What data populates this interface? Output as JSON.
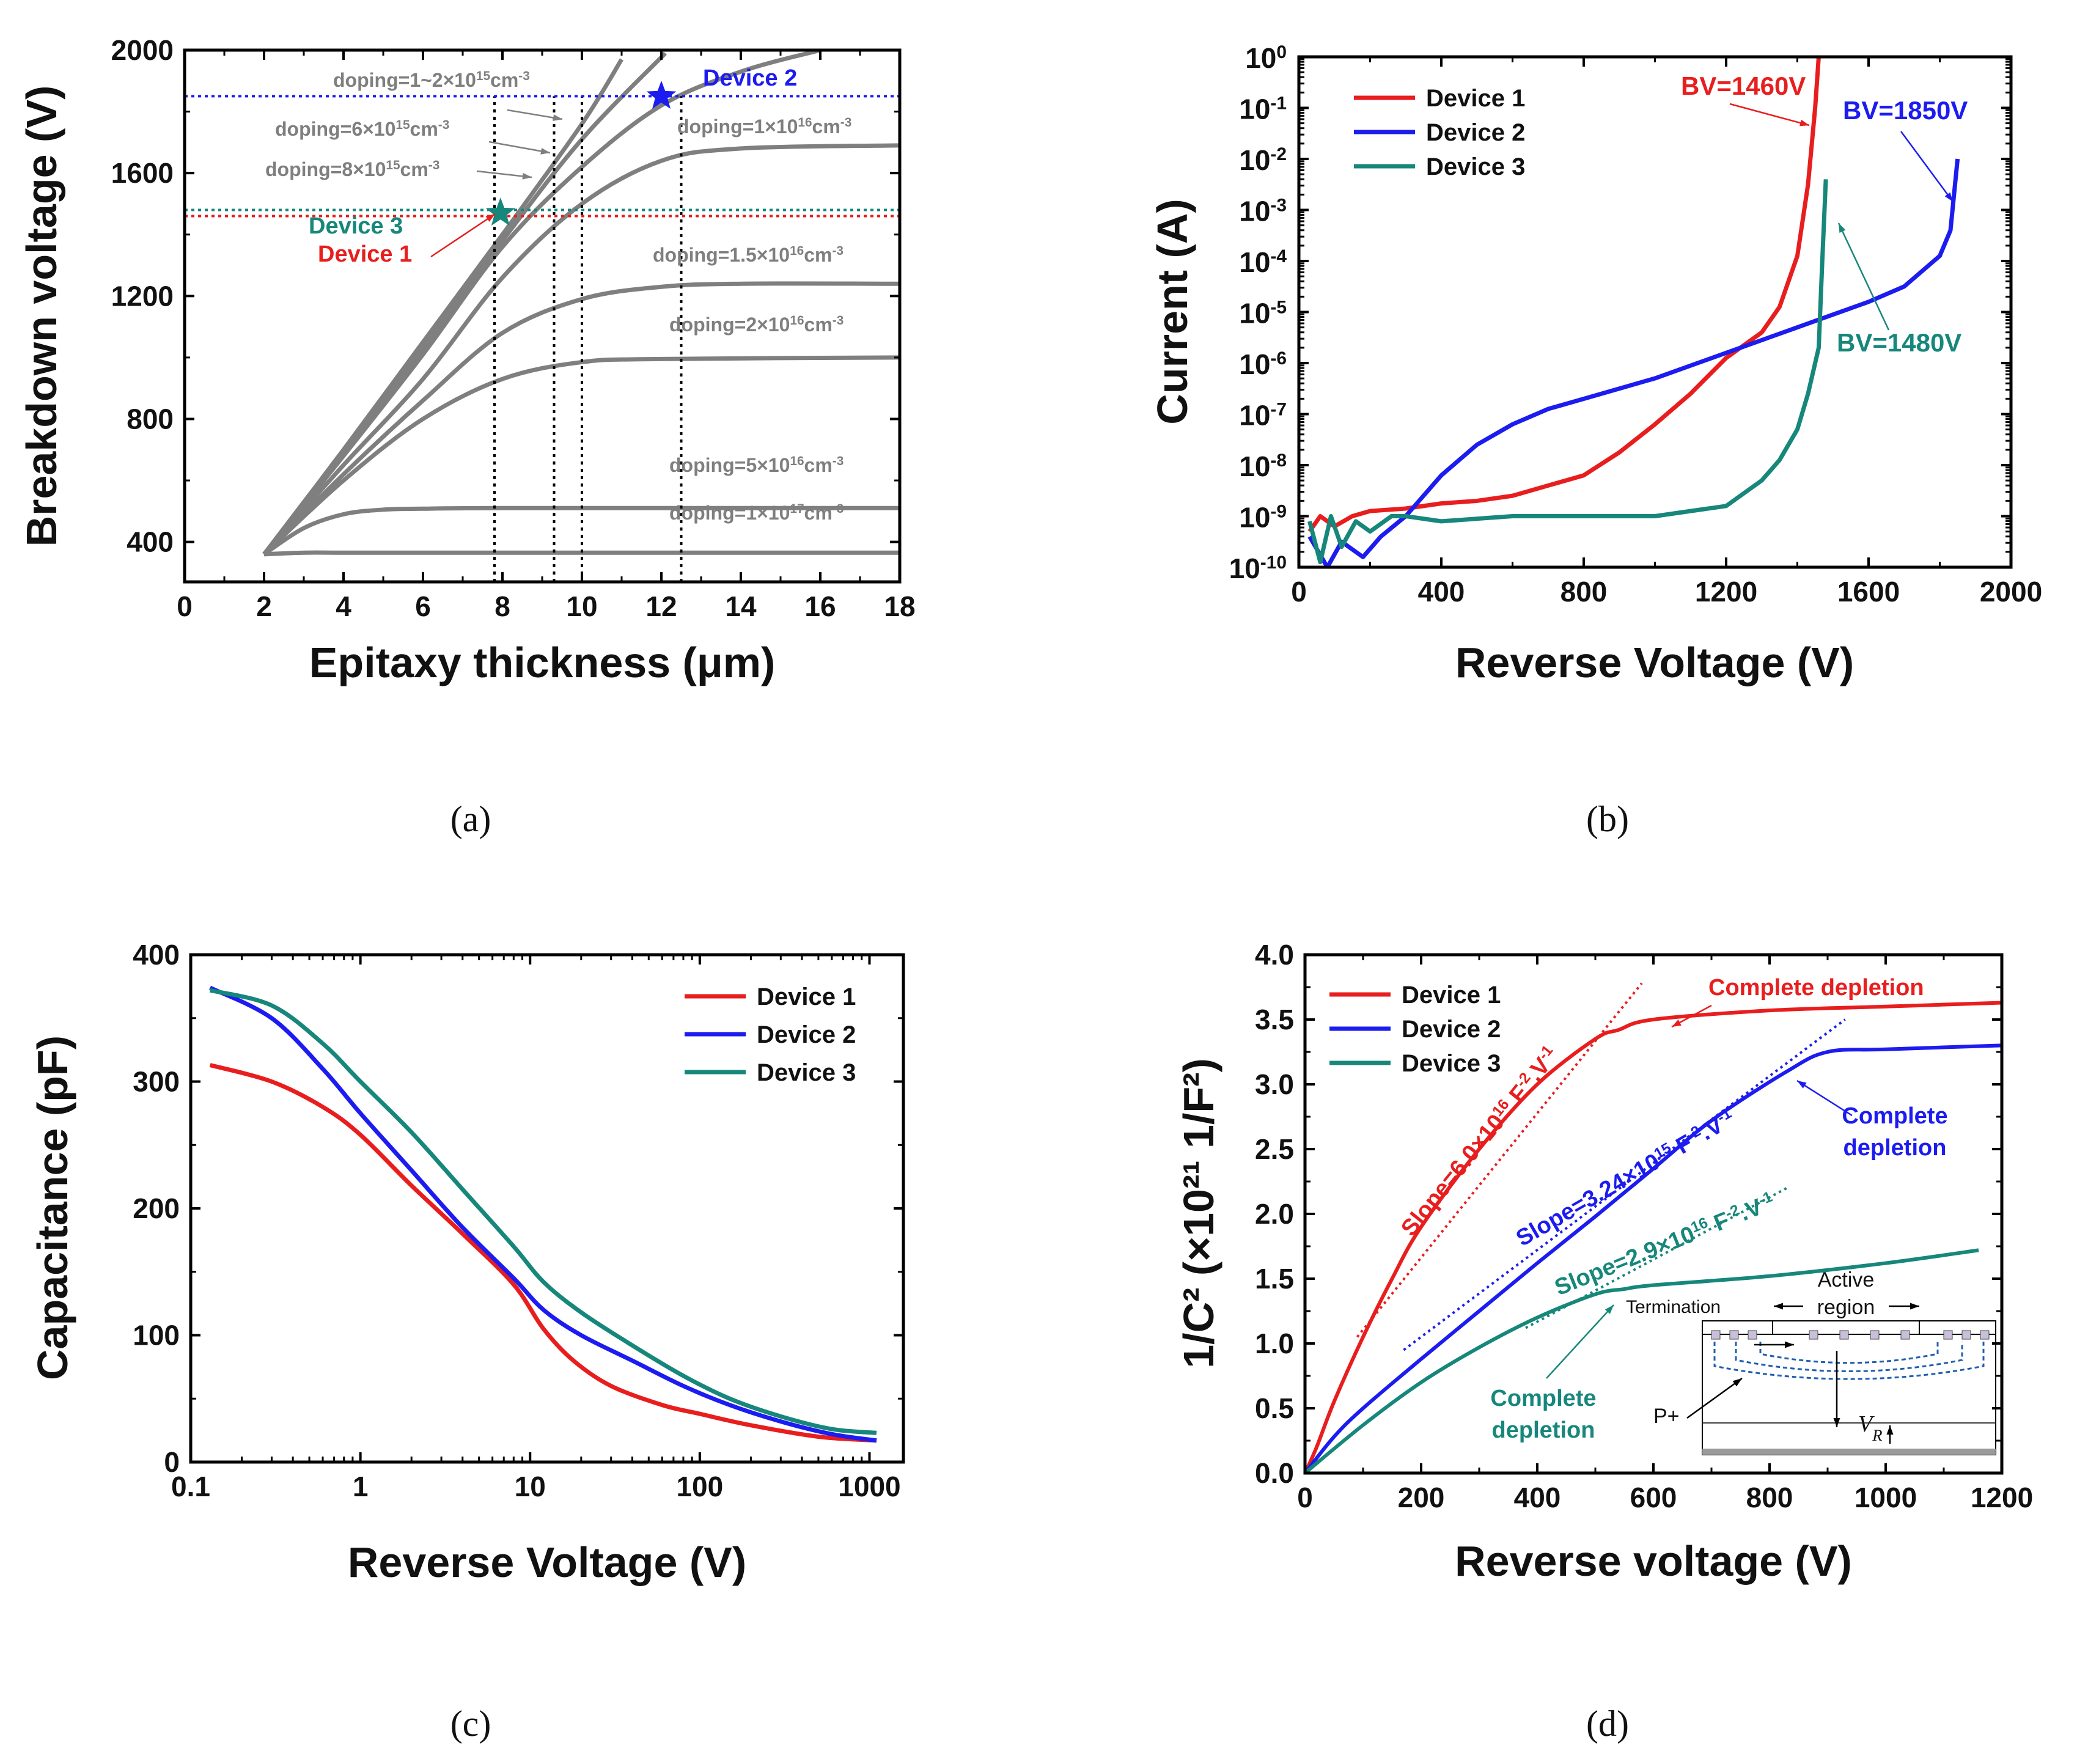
{
  "colors": {
    "dev1": "#e81e1e",
    "dev2": "#1c1cf0",
    "dev3": "#16877a",
    "gray": "#7f7f7f"
  },
  "chart_data": [
    {
      "id": "a",
      "caption": "(a)",
      "type": "line",
      "xlabel": "Epitaxy thickness (μm)",
      "ylabel": "Breakdown voltage (V)",
      "xlim": [
        0,
        18
      ],
      "ylim": [
        270,
        2000
      ],
      "xticks": [
        0,
        2,
        4,
        6,
        8,
        10,
        12,
        14,
        16,
        18
      ],
      "yticks": [
        400,
        800,
        1200,
        1600,
        2000
      ],
      "series": [
        {
          "name": "doping=1~2×10^15cm^-3 (a)",
          "x": [
            2,
            4,
            6,
            8,
            10,
            11
          ],
          "y": [
            360,
            700,
            1050,
            1400,
            1760,
            1970
          ]
        },
        {
          "name": "doping=1~2×10^15cm^-3 (b)",
          "x": [
            2,
            4,
            6,
            8,
            10,
            12.1
          ],
          "y": [
            360,
            690,
            1030,
            1380,
            1710,
            1990
          ]
        },
        {
          "name": "doping=6×10^15cm^-3",
          "x": [
            2,
            4,
            6,
            8,
            10,
            12,
            14,
            16
          ],
          "y": [
            360,
            680,
            1010,
            1360,
            1620,
            1820,
            1930,
            2000
          ]
        },
        {
          "name": "doping=1×10^16cm^-3",
          "x": [
            2,
            4,
            6,
            8,
            10,
            12,
            14,
            18
          ],
          "y": [
            360,
            650,
            930,
            1260,
            1500,
            1640,
            1680,
            1690
          ]
        },
        {
          "name": "doping=1.5×10^16cm^-3",
          "x": [
            2,
            4,
            6,
            8,
            10,
            12,
            14,
            18
          ],
          "y": [
            360,
            620,
            860,
            1080,
            1190,
            1230,
            1240,
            1240
          ]
        },
        {
          "name": "doping=2×10^16cm^-3",
          "x": [
            2,
            4,
            6,
            8,
            10,
            12,
            18
          ],
          "y": [
            360,
            600,
            800,
            930,
            985,
            995,
            1000
          ]
        },
        {
          "name": "doping=5×10^16cm^-3",
          "x": [
            2,
            3,
            4,
            5,
            6,
            8,
            18
          ],
          "y": [
            360,
            445,
            490,
            505,
            508,
            510,
            510
          ]
        },
        {
          "name": "doping=1×10^17cm^-3",
          "x": [
            2,
            3,
            4,
            6,
            18
          ],
          "y": [
            360,
            365,
            365,
            365,
            365
          ]
        }
      ],
      "curve_labels": [
        {
          "text": "doping=1~2×10",
          "sup": "15",
          "tail": "cm",
          "sup2": "-3"
        },
        {
          "text": "doping=6×10",
          "sup": "15",
          "tail": "cm",
          "sup2": "-3"
        },
        {
          "text": "doping=8×10",
          "sup": "15",
          "tail": "cm",
          "sup2": "-3"
        },
        {
          "text": "doping=1×10",
          "sup": "16",
          "tail": "cm",
          "sup2": "-3"
        },
        {
          "text": "doping=1.5×10",
          "sup": "16",
          "tail": "cm",
          "sup2": "-3"
        },
        {
          "text": "doping=2×10",
          "sup": "16",
          "tail": "cm",
          "sup2": "-3"
        },
        {
          "text": "doping=5×10",
          "sup": "16",
          "tail": "cm",
          "sup2": "-3"
        },
        {
          "text": "doping=1×10",
          "sup": "17",
          "tail": "cm",
          "sup2": "-3"
        }
      ],
      "hlines": [
        {
          "y": 1850,
          "series": "Device 2"
        },
        {
          "y": 1480,
          "series": "Device 3"
        },
        {
          "y": 1460,
          "series": "Device 1"
        }
      ],
      "vlines": [
        7.8,
        9.3,
        10.0,
        12.5
      ],
      "stars": [
        {
          "x": 12.0,
          "y": 1850,
          "series": "Device 2"
        },
        {
          "x": 7.95,
          "y": 1470,
          "series": "Device 3"
        }
      ],
      "annotations": [
        "Device 2",
        "Device 3",
        "Device 1"
      ]
    },
    {
      "id": "b",
      "caption": "(b)",
      "type": "line",
      "yscale": "log",
      "xlabel": "Reverse Voltage (V)",
      "ylabel": "Current (A)",
      "xlim": [
        0,
        2000
      ],
      "ylim_exp": [
        -10,
        0
      ],
      "xticks": [
        0,
        400,
        800,
        1200,
        1600,
        2000
      ],
      "yticks_exp": [
        -10,
        -9,
        -8,
        -7,
        -6,
        -5,
        -4,
        -3,
        -2,
        -1,
        0
      ],
      "legend": [
        "Device 1",
        "Device 2",
        "Device 3"
      ],
      "series": [
        {
          "name": "Device 1",
          "x": [
            30,
            60,
            100,
            150,
            200,
            300,
            400,
            500,
            600,
            700,
            800,
            900,
            1000,
            1100,
            1200,
            1300,
            1350,
            1400,
            1430,
            1450,
            1460
          ],
          "y": [
            -9.3,
            -9.0,
            -9.2,
            -9.0,
            -8.9,
            -8.85,
            -8.75,
            -8.7,
            -8.6,
            -8.4,
            -8.2,
            -7.75,
            -7.2,
            -6.6,
            -5.9,
            -5.4,
            -4.9,
            -3.9,
            -2.5,
            -1.0,
            0.0
          ]
        },
        {
          "name": "Device 2",
          "x": [
            30,
            80,
            120,
            180,
            230,
            300,
            400,
            500,
            600,
            700,
            800,
            900,
            1000,
            1200,
            1400,
            1600,
            1700,
            1800,
            1830,
            1850
          ],
          "y": [
            -9.4,
            -10.0,
            -9.5,
            -9.8,
            -9.4,
            -9.0,
            -8.2,
            -7.6,
            -7.2,
            -6.9,
            -6.7,
            -6.5,
            -6.3,
            -5.8,
            -5.3,
            -4.8,
            -4.5,
            -3.9,
            -3.4,
            -2.0
          ]
        },
        {
          "name": "Device 3",
          "x": [
            30,
            60,
            90,
            120,
            160,
            200,
            260,
            300,
            400,
            600,
            800,
            1000,
            1100,
            1200,
            1300,
            1350,
            1400,
            1430,
            1460,
            1470,
            1480
          ],
          "y": [
            -9.1,
            -9.9,
            -9.0,
            -9.6,
            -9.1,
            -9.3,
            -9.0,
            -9.0,
            -9.1,
            -9.0,
            -9.0,
            -9.0,
            -8.9,
            -8.8,
            -8.3,
            -7.9,
            -7.3,
            -6.6,
            -5.7,
            -4.0,
            -2.4
          ]
        }
      ],
      "annotations": [
        {
          "text": "BV=1460V",
          "series": "Device 1"
        },
        {
          "text": "BV=1850V",
          "series": "Device 2"
        },
        {
          "text": "BV=1480V",
          "series": "Device 3"
        }
      ]
    },
    {
      "id": "c",
      "caption": "(c)",
      "type": "line",
      "xscale": "log",
      "xlabel": "Reverse Voltage (V)",
      "ylabel": "Capacitance (pF)",
      "xlim_exp": [
        -1,
        3.2
      ],
      "ylim": [
        0,
        400
      ],
      "xticks": [
        {
          "v": 0.1,
          "label": "0.1"
        },
        {
          "v": 1,
          "label": "1"
        },
        {
          "v": 10,
          "label": "10"
        },
        {
          "v": 100,
          "label": "100"
        },
        {
          "v": 1000,
          "label": "1000"
        }
      ],
      "yticks": [
        0,
        100,
        200,
        300,
        400
      ],
      "legend": [
        "Device 1",
        "Device 2",
        "Device 3"
      ],
      "series": [
        {
          "name": "Device 1",
          "x": [
            0.13,
            0.3,
            0.6,
            1,
            2,
            4,
            8,
            12,
            18,
            30,
            60,
            100,
            200,
            500,
            1100
          ],
          "y": [
            313,
            300,
            280,
            258,
            218,
            180,
            140,
            105,
            80,
            60,
            45,
            38,
            29,
            20,
            17
          ]
        },
        {
          "name": "Device 2",
          "x": [
            0.13,
            0.3,
            0.6,
            1,
            2,
            4,
            8,
            12,
            20,
            40,
            80,
            150,
            300,
            600,
            1100
          ],
          "y": [
            374,
            350,
            310,
            275,
            230,
            185,
            145,
            120,
            100,
            80,
            60,
            45,
            32,
            22,
            17
          ]
        },
        {
          "name": "Device 3",
          "x": [
            0.13,
            0.3,
            0.6,
            1,
            2,
            4,
            8,
            12,
            20,
            40,
            80,
            150,
            300,
            600,
            1100
          ],
          "y": [
            372,
            360,
            330,
            300,
            260,
            215,
            170,
            142,
            118,
            92,
            68,
            50,
            36,
            26,
            23
          ]
        }
      ]
    },
    {
      "id": "d",
      "caption": "(d)",
      "type": "line",
      "xlabel": "Reverse voltage (V)",
      "ylabel": "1/C² (×10²¹ 1/F²)",
      "xlim": [
        0,
        1200
      ],
      "ylim": [
        0,
        4.0
      ],
      "xticks": [
        0,
        200,
        400,
        600,
        800,
        1000,
        1200
      ],
      "yticks": [
        0.0,
        0.5,
        1.0,
        1.5,
        2.0,
        2.5,
        3.0,
        3.5,
        4.0
      ],
      "legend": [
        "Device 1",
        "Device 2",
        "Device 3"
      ],
      "series": [
        {
          "name": "Device 1",
          "x": [
            0,
            20,
            50,
            100,
            150,
            200,
            300,
            400,
            500,
            540,
            600,
            800,
            1000,
            1200
          ],
          "y": [
            0.0,
            0.2,
            0.55,
            1.05,
            1.5,
            1.9,
            2.5,
            3.0,
            3.35,
            3.42,
            3.5,
            3.57,
            3.6,
            3.63
          ]
        },
        {
          "name": "Device 2",
          "x": [
            0,
            50,
            100,
            200,
            300,
            400,
            500,
            600,
            700,
            830,
            900,
            1000,
            1200
          ],
          "y": [
            0.0,
            0.28,
            0.5,
            0.88,
            1.25,
            1.62,
            1.98,
            2.35,
            2.72,
            3.1,
            3.25,
            3.27,
            3.3
          ]
        },
        {
          "name": "Device 3",
          "x": [
            0,
            100,
            200,
            300,
            400,
            500,
            550,
            600,
            800,
            1000,
            1160
          ],
          "y": [
            0.0,
            0.37,
            0.7,
            0.97,
            1.2,
            1.38,
            1.42,
            1.45,
            1.52,
            1.62,
            1.72
          ]
        }
      ],
      "fit_lines": [
        {
          "series": "Device 1",
          "x": [
            90,
            580
          ],
          "y": [
            1.05,
            3.78
          ]
        },
        {
          "series": "Device 2",
          "x": [
            170,
            930
          ],
          "y": [
            0.95,
            3.5
          ]
        },
        {
          "series": "Device 3",
          "x": [
            380,
            830
          ],
          "y": [
            1.12,
            2.2
          ]
        }
      ],
      "slopes": [
        {
          "text": "Slope=6.0×10",
          "sup": "16",
          "tail": " F",
          "sup2": "-2",
          "tail2": ".V",
          "sup3": "-1",
          "series": "Device 1"
        },
        {
          "text": "Slope=3.24×10",
          "sup": "15",
          "tail": " F",
          "sup2": "-2",
          "tail2": ".V",
          "sup3": "-1",
          "series": "Device 2"
        },
        {
          "text": "Slope=2.9×10",
          "sup": "16",
          "tail": " F",
          "sup2": "-2",
          "tail2": ".V",
          "sup3": "-1",
          "series": "Device 3"
        }
      ],
      "depletion_labels": [
        {
          "lines": [
            "Complete depletion"
          ],
          "series": "Device 1"
        },
        {
          "lines": [
            "Complete",
            "depletion"
          ],
          "series": "Device 2"
        },
        {
          "lines": [
            "Complete",
            "depletion"
          ],
          "series": "Device 3"
        }
      ],
      "inset": {
        "labels": [
          "Active",
          "region",
          "Termination",
          "P+",
          "V",
          "R"
        ]
      }
    }
  ]
}
